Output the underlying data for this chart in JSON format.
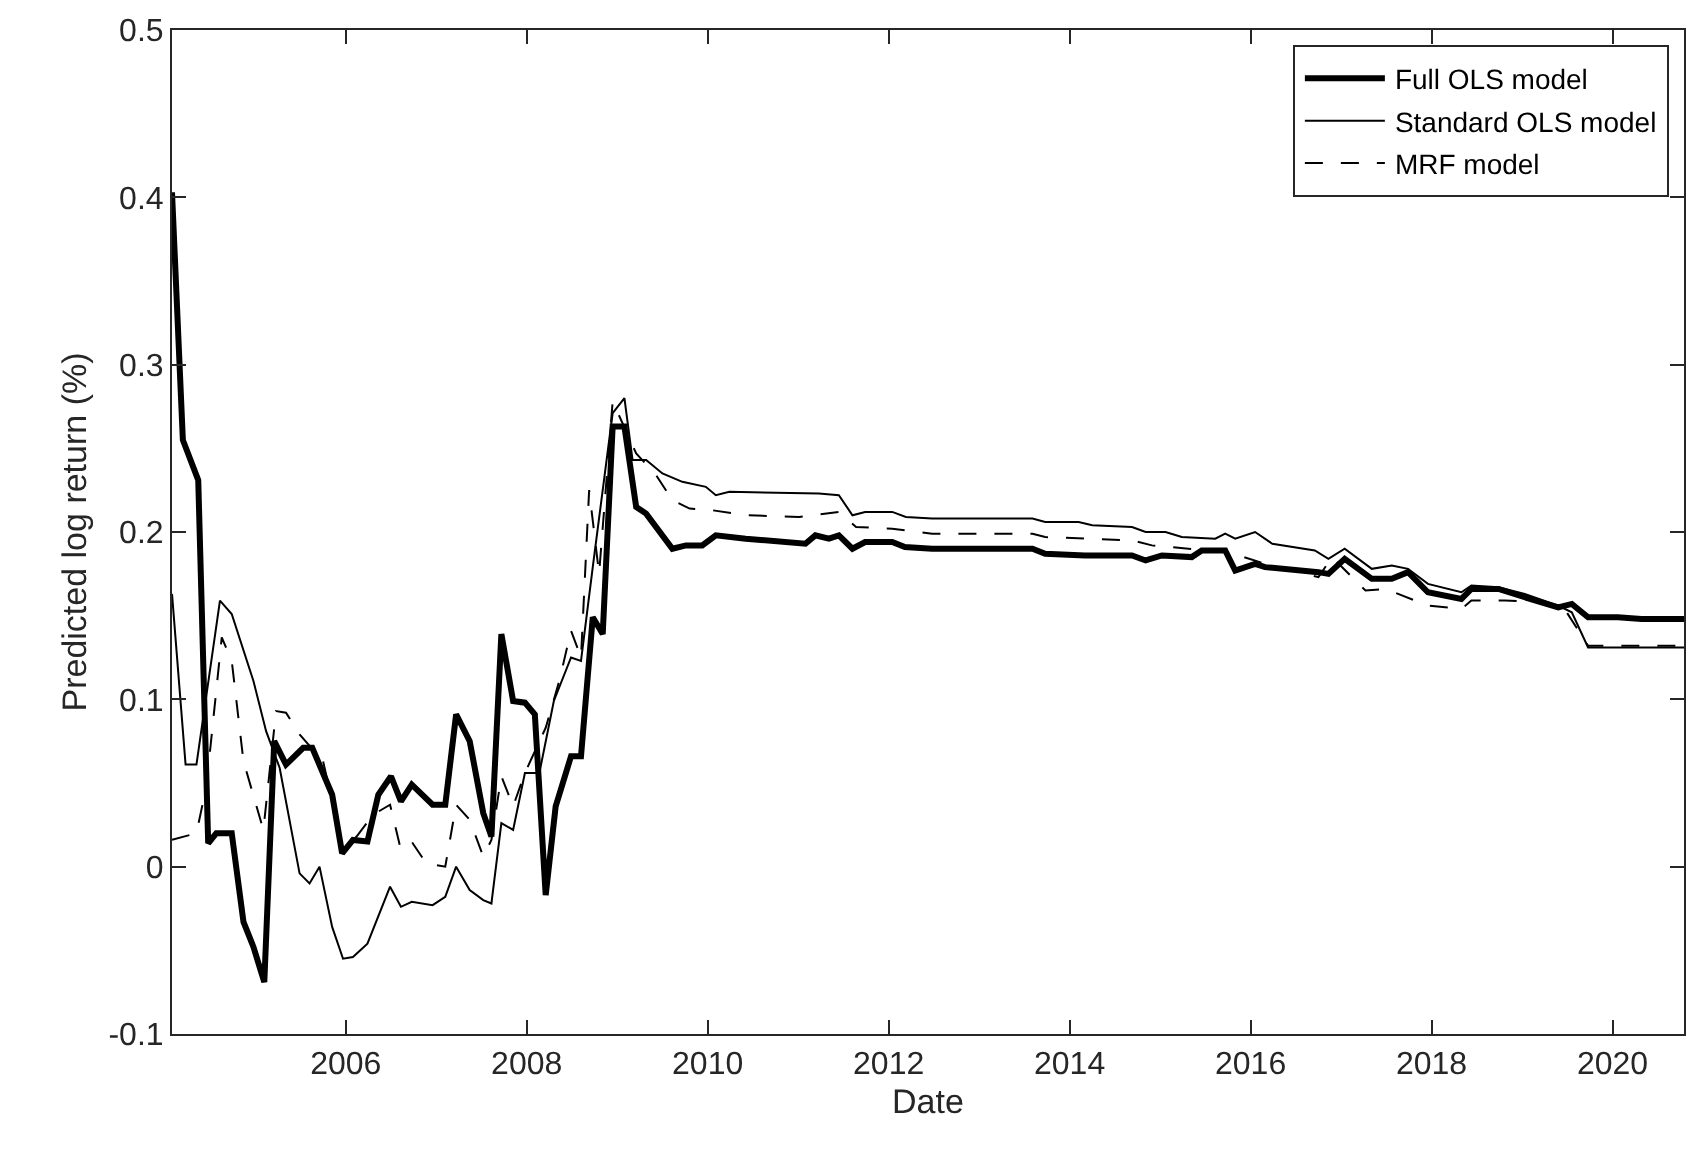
{
  "chart_data": {
    "type": "line",
    "xlabel": "Date",
    "ylabel": "Predicted log return (%)",
    "xlim": [
      2004.08,
      2020.79
    ],
    "xticks": [
      2006,
      2008,
      2010,
      2012,
      2014,
      2016,
      2018,
      2020
    ],
    "ylim": [
      -0.1,
      0.5
    ],
    "yticks": [
      -0.1,
      0,
      0.1,
      0.2,
      0.3,
      0.4,
      0.5
    ],
    "legend": "top right",
    "series": [
      {
        "name": "Full OLS model",
        "color": "#000000",
        "line_style": "solid",
        "x": [
          2004.08,
          2004.2,
          2004.37,
          2004.48,
          2004.57,
          2004.74,
          2004.87,
          2004.98,
          2005.1,
          2005.21,
          2005.34,
          2005.53,
          2005.63,
          2005.85,
          2005.96,
          2006.08,
          2006.24,
          2006.36,
          2006.5,
          2006.61,
          2006.73,
          2006.96,
          2007.1,
          2007.22,
          2007.37,
          2007.52,
          2007.61,
          2007.72,
          2007.85,
          2007.98,
          2008.09,
          2008.21,
          2008.32,
          2008.49,
          2008.6,
          2008.73,
          2008.84,
          2008.95,
          2009.08,
          2009.21,
          2009.32,
          2009.61,
          2009.76,
          2009.94,
          2010.09,
          2010.42,
          2011.08,
          2011.19,
          2011.34,
          2011.45,
          2011.6,
          2011.74,
          2012.04,
          2012.18,
          2012.48,
          2013.59,
          2013.73,
          2014.17,
          2014.69,
          2014.84,
          2015.02,
          2015.35,
          2015.46,
          2015.72,
          2015.83,
          2016.05,
          2016.16,
          2016.75,
          2016.86,
          2017.04,
          2017.34,
          2017.56,
          2017.74,
          2017.96,
          2018.33,
          2018.44,
          2018.74,
          2019.03,
          2019.4,
          2019.55,
          2019.73,
          2020.06,
          2020.32,
          2020.79
        ],
        "values": [
          0.403,
          0.255,
          0.231,
          0.014,
          0.02,
          0.02,
          -0.033,
          -0.048,
          -0.069,
          0.075,
          0.061,
          0.071,
          0.071,
          0.043,
          0.008,
          0.016,
          0.015,
          0.043,
          0.054,
          0.039,
          0.049,
          0.037,
          0.037,
          0.091,
          0.075,
          0.032,
          0.018,
          0.139,
          0.099,
          0.098,
          0.091,
          -0.017,
          0.036,
          0.066,
          0.066,
          0.149,
          0.139,
          0.263,
          0.263,
          0.215,
          0.211,
          0.19,
          0.192,
          0.192,
          0.198,
          0.196,
          0.193,
          0.198,
          0.196,
          0.198,
          0.19,
          0.194,
          0.194,
          0.191,
          0.19,
          0.19,
          0.187,
          0.186,
          0.186,
          0.183,
          0.186,
          0.185,
          0.189,
          0.189,
          0.177,
          0.181,
          0.179,
          0.176,
          0.175,
          0.184,
          0.172,
          0.172,
          0.176,
          0.164,
          0.16,
          0.166,
          0.166,
          0.161,
          0.155,
          0.157,
          0.149,
          0.149,
          0.148,
          0.148
        ]
      },
      {
        "name": "Standard OLS model",
        "color": "#000000",
        "line_style": "solid",
        "x": [
          2004.08,
          2004.23,
          2004.35,
          2004.61,
          2004.74,
          2004.98,
          2005.12,
          2005.27,
          2005.49,
          2005.6,
          2005.71,
          2005.85,
          2005.97,
          2006.08,
          2006.24,
          2006.49,
          2006.61,
          2006.73,
          2006.96,
          2007.1,
          2007.22,
          2007.37,
          2007.52,
          2007.61,
          2007.72,
          2007.85,
          2007.98,
          2008.14,
          2008.3,
          2008.49,
          2008.6,
          2008.73,
          2008.95,
          2009.08,
          2009.17,
          2009.32,
          2009.5,
          2009.72,
          2009.98,
          2010.09,
          2010.24,
          2011.23,
          2011.45,
          2011.6,
          2011.74,
          2012.04,
          2012.19,
          2012.48,
          2013.59,
          2013.73,
          2014.1,
          2014.25,
          2014.69,
          2014.84,
          2015.06,
          2015.24,
          2015.61,
          2015.72,
          2015.83,
          2016.05,
          2016.24,
          2016.71,
          2016.86,
          2017.04,
          2017.34,
          2017.56,
          2017.74,
          2017.96,
          2018.33,
          2018.44,
          2018.74,
          2019.03,
          2019.4,
          2019.55,
          2019.73,
          2020.79
        ],
        "values": [
          0.163,
          0.061,
          0.061,
          0.159,
          0.151,
          0.111,
          0.081,
          0.059,
          -0.004,
          -0.01,
          0.0,
          -0.036,
          -0.055,
          -0.054,
          -0.046,
          -0.012,
          -0.024,
          -0.021,
          -0.023,
          -0.018,
          0.0,
          -0.014,
          -0.02,
          -0.022,
          0.026,
          0.022,
          0.056,
          0.056,
          0.099,
          0.125,
          0.123,
          0.179,
          0.271,
          0.28,
          0.243,
          0.243,
          0.235,
          0.23,
          0.227,
          0.222,
          0.224,
          0.223,
          0.222,
          0.21,
          0.212,
          0.212,
          0.209,
          0.208,
          0.208,
          0.206,
          0.206,
          0.204,
          0.203,
          0.2,
          0.2,
          0.197,
          0.196,
          0.199,
          0.196,
          0.2,
          0.193,
          0.189,
          0.184,
          0.19,
          0.178,
          0.18,
          0.178,
          0.169,
          0.164,
          0.168,
          0.167,
          0.163,
          0.156,
          0.152,
          0.131,
          0.131
        ]
      },
      {
        "name": "MRF model",
        "color": "#000000",
        "line_style": "dashed",
        "x": [
          2004.08,
          2004.35,
          2004.46,
          2004.63,
          2004.74,
          2004.87,
          2005.09,
          2005.23,
          2005.34,
          2005.49,
          2005.75,
          2005.97,
          2006.12,
          2006.3,
          2006.49,
          2006.61,
          2006.74,
          2006.89,
          2007.1,
          2007.22,
          2007.37,
          2007.52,
          2007.61,
          2007.72,
          2007.85,
          2007.98,
          2008.21,
          2008.36,
          2008.49,
          2008.6,
          2008.69,
          2008.8,
          2008.95,
          2009.21,
          2009.43,
          2009.61,
          2009.8,
          2010.05,
          2010.42,
          2011.01,
          2011.45,
          2011.64,
          2012.04,
          2012.48,
          2013.59,
          2013.73,
          2014.69,
          2014.91,
          2015.72,
          2015.87,
          2016.16,
          2016.75,
          2016.9,
          2017.27,
          2017.49,
          2017.63,
          2017.96,
          2018.33,
          2018.44,
          2018.81,
          2019.25,
          2019.47,
          2019.73,
          2020.79
        ],
        "values": [
          0.016,
          0.02,
          0.048,
          0.137,
          0.123,
          0.063,
          0.022,
          0.093,
          0.092,
          0.079,
          0.063,
          0.01,
          0.018,
          0.031,
          0.037,
          0.01,
          0.014,
          0.002,
          0.0,
          0.037,
          0.028,
          0.006,
          0.016,
          0.054,
          0.036,
          0.056,
          0.083,
          0.111,
          0.141,
          0.125,
          0.225,
          0.175,
          0.278,
          0.247,
          0.234,
          0.219,
          0.214,
          0.213,
          0.21,
          0.209,
          0.212,
          0.203,
          0.202,
          0.199,
          0.199,
          0.197,
          0.195,
          0.192,
          0.188,
          0.186,
          0.181,
          0.173,
          0.185,
          0.165,
          0.166,
          0.163,
          0.156,
          0.154,
          0.159,
          0.159,
          0.158,
          0.154,
          0.132,
          0.132
        ]
      }
    ]
  }
}
